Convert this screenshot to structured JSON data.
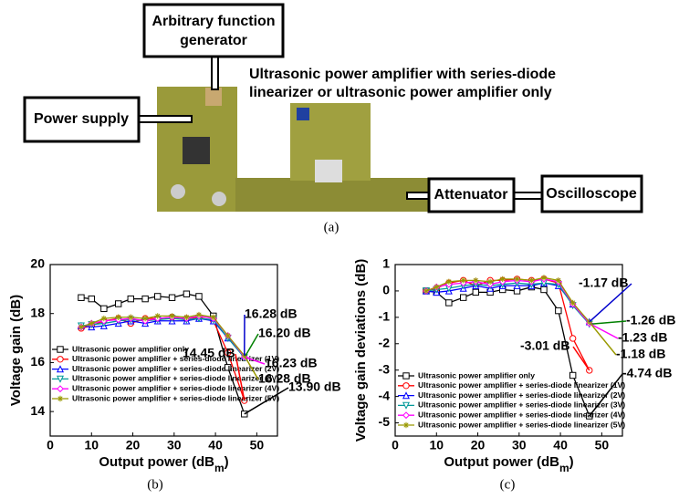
{
  "figure": {
    "generator": [
      "Arbitrary function",
      "generator"
    ],
    "power_supply": "Power supply",
    "amplifier": [
      "Ultrasonic power amplifier with series-diode",
      "linearizer or ultrasonic power amplifier only"
    ],
    "attenuator": "Attenuator",
    "oscilloscope": "Oscilloscope",
    "caption": "(a)"
  },
  "chart_data": [
    {
      "type": "line",
      "caption": "(b)",
      "ylabel": "Voltage gain (dB)",
      "xlabel": [
        "Output power (dB",
        "m",
        ")"
      ],
      "xlim": [
        0,
        55
      ],
      "xticks": [
        0,
        10,
        20,
        30,
        40,
        50
      ],
      "ylim": [
        13,
        20
      ],
      "yticks": [
        14,
        16,
        18,
        20
      ],
      "x": [
        7.5,
        10,
        13,
        16.5,
        19.5,
        23,
        26,
        29.5,
        33,
        36,
        39.5,
        43,
        47
      ],
      "series": [
        {
          "name": "Ultrasonic power amplifier only",
          "color": "#000000",
          "values": [
            18.65,
            18.6,
            18.2,
            18.4,
            18.6,
            18.6,
            18.7,
            18.65,
            18.8,
            18.7,
            17.9,
            15.8,
            13.9
          ]
        },
        {
          "name": "Ultrasonic power amplifier + series-diode linearizer (1V)",
          "color": "#ff0000",
          "values": [
            17.4,
            17.5,
            17.7,
            17.8,
            17.6,
            17.8,
            17.8,
            17.85,
            17.8,
            17.85,
            17.7,
            16.4,
            14.45
          ]
        },
        {
          "name": "Ultrasonic power amplifier + series-diode linearizer (2V)",
          "color": "#0000ff",
          "values": [
            17.5,
            17.45,
            17.5,
            17.6,
            17.7,
            17.6,
            17.7,
            17.7,
            17.7,
            17.8,
            17.7,
            17.0,
            16.28
          ]
        },
        {
          "name": "Ultrasonic power amplifier + series-diode linearizer (3V)",
          "color": "#009999",
          "values": [
            17.5,
            17.55,
            17.6,
            17.7,
            17.75,
            17.7,
            17.75,
            17.8,
            17.75,
            17.8,
            17.75,
            17.0,
            16.2
          ]
        },
        {
          "name": "Ultrasonic power amplifier + series-diode linearizer (4V)",
          "color": "#ff00ff",
          "values": [
            17.45,
            17.6,
            17.7,
            17.75,
            17.8,
            17.7,
            17.8,
            17.85,
            17.8,
            17.9,
            17.8,
            17.1,
            16.23
          ]
        },
        {
          "name": "Ultrasonic power amplifier + series-diode linearizer (5V)",
          "color": "#999900",
          "values": [
            17.45,
            17.6,
            17.8,
            17.85,
            17.85,
            17.8,
            17.9,
            17.9,
            17.85,
            17.95,
            17.85,
            17.1,
            16.28
          ]
        }
      ],
      "annotations": [
        {
          "text": "16.28 dB",
          "color": "#0000cc"
        },
        {
          "text": "16.20 dB",
          "color": "#008000"
        },
        {
          "text": "14.45 dB",
          "color": "#ff0000"
        },
        {
          "text": "16.23 dB",
          "color": "#ff00ff"
        },
        {
          "text": "16.28 dB",
          "color": "#999900"
        },
        {
          "text": "13.90 dB",
          "color": "#000000"
        }
      ]
    },
    {
      "type": "line",
      "caption": "(c)",
      "ylabel": "Voltage gain deviations (dB)",
      "xlabel": [
        "Output power (dB",
        "m",
        ")"
      ],
      "xlim": [
        0,
        55
      ],
      "xticks": [
        0,
        10,
        20,
        30,
        40,
        50
      ],
      "ylim": [
        -5.5,
        1
      ],
      "yticks": [
        -5,
        -4,
        -3,
        -2,
        -1,
        0,
        1
      ],
      "x": [
        7.5,
        10,
        13,
        16.5,
        19.5,
        23,
        26,
        29.5,
        33,
        36,
        39.5,
        43,
        47
      ],
      "series": [
        {
          "name": "Ultrasonic power amplifier only",
          "color": "#000000",
          "values": [
            0,
            -0.05,
            -0.45,
            -0.25,
            -0.05,
            -0.05,
            0.05,
            0,
            0.15,
            0.05,
            -0.75,
            -3.2,
            -4.74
          ]
        },
        {
          "name": "Ultrasonic power amplifier + series-diode linearizer (1V)",
          "color": "#ff0000",
          "values": [
            0,
            0.1,
            0.3,
            0.4,
            0.2,
            0.4,
            0.4,
            0.45,
            0.4,
            0.45,
            0.3,
            -1.8,
            -3.01
          ]
        },
        {
          "name": "Ultrasonic power amplifier + series-diode linearizer (2V)",
          "color": "#0000ff",
          "values": [
            0,
            -0.05,
            0,
            0.1,
            0.2,
            0.1,
            0.2,
            0.2,
            0.2,
            0.3,
            0.2,
            -0.5,
            -1.17
          ]
        },
        {
          "name": "Ultrasonic power amplifier + series-diode linearizer (3V)",
          "color": "#009999",
          "values": [
            0,
            0.05,
            0.1,
            0.2,
            0.25,
            0.2,
            0.25,
            0.3,
            0.25,
            0.3,
            0.25,
            -0.55,
            -1.26
          ]
        },
        {
          "name": "Ultrasonic power amplifier + series-diode linearizer (4V)",
          "color": "#ff00ff",
          "values": [
            0,
            0.15,
            0.25,
            0.3,
            0.35,
            0.25,
            0.35,
            0.4,
            0.35,
            0.45,
            0.35,
            -0.5,
            -1.23
          ]
        },
        {
          "name": "Ultrasonic power amplifier + series-diode linearizer (5V)",
          "color": "#999900",
          "values": [
            0,
            0.15,
            0.35,
            0.4,
            0.4,
            0.35,
            0.45,
            0.45,
            0.4,
            0.5,
            0.4,
            -0.45,
            -1.18
          ]
        }
      ],
      "annotations": [
        {
          "text": "-1.17 dB",
          "color": "#0000cc"
        },
        {
          "text": "-1.26 dB",
          "color": "#008000"
        },
        {
          "text": "-1.23 dB",
          "color": "#ff00ff"
        },
        {
          "text": "-1.18 dB",
          "color": "#999900"
        },
        {
          "text": "-3.01 dB",
          "color": "#ff0000"
        },
        {
          "text": "-4.74 dB",
          "color": "#000000"
        }
      ]
    }
  ]
}
